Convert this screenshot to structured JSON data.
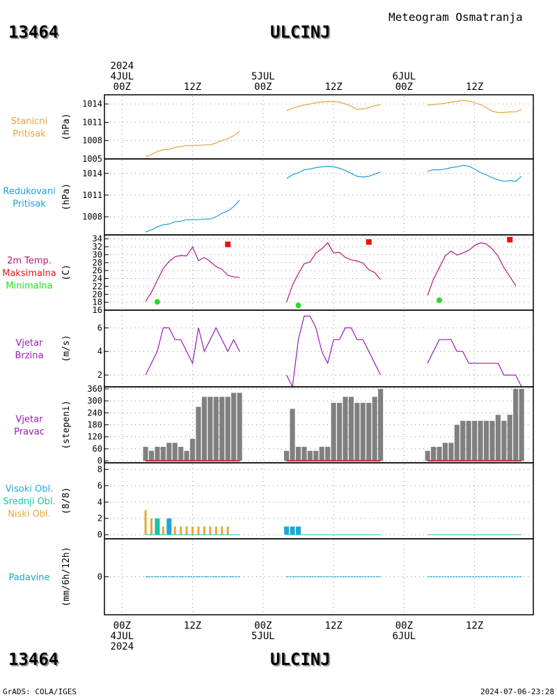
{
  "header": {
    "station_id": "13464",
    "station_name": "ULCINJ",
    "product": "Meteogram Osmatranja"
  },
  "time_axis": {
    "top_labels": [
      {
        "hour": 0,
        "lines": [
          "2024",
          "4JUL",
          "00Z"
        ]
      },
      {
        "hour": 12,
        "lines": [
          "12Z"
        ]
      },
      {
        "hour": 24,
        "lines": [
          "5JUL",
          "00Z"
        ]
      },
      {
        "hour": 36,
        "lines": [
          "12Z"
        ]
      },
      {
        "hour": 48,
        "lines": [
          "6JUL",
          "00Z"
        ]
      },
      {
        "hour": 60,
        "lines": [
          "12Z"
        ]
      }
    ],
    "bottom_labels": [
      {
        "hour": 0,
        "lines": [
          "00Z",
          "4JUL",
          "2024"
        ]
      },
      {
        "hour": 12,
        "lines": [
          "12Z"
        ]
      },
      {
        "hour": 24,
        "lines": [
          "00Z",
          "5JUL"
        ]
      },
      {
        "hour": 36,
        "lines": [
          "12Z"
        ]
      },
      {
        "hour": 48,
        "lines": [
          "00Z",
          "6JUL"
        ]
      },
      {
        "hour": 60,
        "lines": [
          "12Z"
        ]
      }
    ],
    "xlim_hours": [
      -3,
      70
    ],
    "grid_hours": [
      0,
      12,
      24,
      36,
      48,
      60
    ]
  },
  "footer": {
    "left": "GrADS: COLA/IGES",
    "right": "2024-07-06-23:28"
  },
  "colors": {
    "station_pressure": "#e6a23c",
    "reduced_pressure": "#1a9fd9",
    "temperature": "#b0187a",
    "tmax": "#ee1111",
    "tmin": "#22dd22",
    "wind_speed": "#9a18b8",
    "wind_dir_label": "#9a18b8",
    "wind_dir_bar": "#808080",
    "wind_dir_base": "#c03030",
    "cloud_high": "#1ea7d6",
    "cloud_mid": "#19c3a8",
    "cloud_low": "#e6a830",
    "precip": "#1aa4c8"
  },
  "chart_data": [
    {
      "type": "line",
      "panel": "station_pressure",
      "label_lines": [
        "Stanicni",
        "Pritisak"
      ],
      "ylabel": "(hPa)",
      "ylim": [
        1005,
        1015.5
      ],
      "yticks": [
        1005,
        1008,
        1011,
        1014
      ],
      "series": [
        {
          "x": [
            4,
            5,
            6,
            7,
            8,
            9,
            10,
            11,
            12,
            13,
            14,
            15,
            16,
            17,
            18,
            19,
            20
          ],
          "values": [
            1005.4,
            1005.7,
            1006.2,
            1006.5,
            1006.6,
            1006.9,
            1007.0,
            1007.2,
            1007.2,
            1007.2,
            1007.3,
            1007.3,
            1007.6,
            1008.0,
            1008.3,
            1008.8,
            1009.5
          ]
        },
        {
          "x": [
            28,
            29,
            30,
            31,
            32,
            33,
            34,
            35,
            36,
            37,
            38,
            39,
            40,
            41,
            42,
            43,
            44
          ],
          "values": [
            1012.9,
            1013.3,
            1013.6,
            1013.8,
            1014.0,
            1014.2,
            1014.3,
            1014.4,
            1014.4,
            1014.3,
            1014.0,
            1013.6,
            1013.1,
            1013.2,
            1013.4,
            1013.7,
            1013.9
          ]
        },
        {
          "x": [
            52,
            53,
            54,
            55,
            56,
            57,
            58,
            59,
            60,
            61,
            62,
            63,
            64,
            65,
            66,
            67,
            68
          ],
          "values": [
            1013.8,
            1013.9,
            1014.0,
            1014.1,
            1014.3,
            1014.4,
            1014.6,
            1014.5,
            1014.2,
            1013.9,
            1013.4,
            1012.8,
            1012.6,
            1012.6,
            1012.7,
            1012.7,
            1013.1
          ]
        }
      ]
    },
    {
      "type": "line",
      "panel": "reduced_pressure",
      "label_lines": [
        "Redukovani",
        "Pritisak"
      ],
      "ylabel": "(hPa)",
      "ylim": [
        1005.5,
        1016
      ],
      "yticks": [
        1008,
        1011,
        1014
      ],
      "series": [
        {
          "x": [
            4,
            5,
            6,
            7,
            8,
            9,
            10,
            11,
            12,
            13,
            14,
            15,
            16,
            17,
            18,
            19,
            20
          ],
          "values": [
            1005.9,
            1006.2,
            1006.6,
            1006.9,
            1007.0,
            1007.3,
            1007.4,
            1007.6,
            1007.6,
            1007.6,
            1007.7,
            1007.7,
            1008.0,
            1008.5,
            1008.8,
            1009.4,
            1010.3
          ]
        },
        {
          "x": [
            28,
            29,
            30,
            31,
            32,
            33,
            34,
            35,
            36,
            37,
            38,
            39,
            40,
            41,
            42,
            43,
            44
          ],
          "values": [
            1013.3,
            1013.8,
            1014.1,
            1014.5,
            1014.6,
            1014.8,
            1014.9,
            1015.0,
            1014.9,
            1014.7,
            1014.4,
            1014.0,
            1013.6,
            1013.5,
            1013.6,
            1013.9,
            1014.2
          ]
        },
        {
          "x": [
            52,
            53,
            54,
            55,
            56,
            57,
            58,
            59,
            60,
            61,
            62,
            63,
            64,
            65,
            66,
            67,
            68
          ],
          "values": [
            1014.3,
            1014.5,
            1014.5,
            1014.6,
            1014.8,
            1014.9,
            1015.1,
            1015.0,
            1014.6,
            1014.1,
            1013.8,
            1013.4,
            1013.1,
            1012.9,
            1013.0,
            1012.9,
            1013.6
          ]
        }
      ]
    },
    {
      "type": "line",
      "panel": "temperature",
      "label_lines": [
        "2m Temp.",
        "Maksimalna",
        "Minimalna"
      ],
      "ylabel": "(C)",
      "ylim": [
        16,
        35
      ],
      "yticks": [
        16,
        18,
        20,
        22,
        24,
        26,
        28,
        30,
        32,
        34
      ],
      "series": [
        {
          "x": [
            4,
            5,
            6,
            7,
            8,
            9,
            10,
            11,
            12,
            13,
            14,
            15,
            16,
            17,
            18,
            19,
            20
          ],
          "values": [
            18.2,
            20.5,
            23.5,
            26.5,
            28.3,
            29.5,
            29.8,
            29.7,
            32.0,
            28.5,
            29.3,
            28.3,
            27.0,
            26.3,
            24.8,
            24.4,
            24.3
          ]
        },
        {
          "x": [
            28,
            29,
            30,
            31,
            32,
            33,
            34,
            35,
            36,
            37,
            38,
            39,
            40,
            41,
            42,
            43,
            44
          ],
          "values": [
            18.0,
            22.3,
            25.2,
            27.7,
            28.2,
            30.4,
            31.5,
            33.0,
            30.4,
            30.6,
            29.3,
            28.7,
            28.4,
            27.9,
            26.2,
            25.5,
            23.7
          ]
        },
        {
          "x": [
            52,
            53,
            54,
            55,
            56,
            57,
            58,
            59,
            60,
            61,
            62,
            63,
            64,
            65,
            66,
            67,
            68
          ],
          "values": [
            19.7,
            23.8,
            26.7,
            29.7,
            30.9,
            29.9,
            30.4,
            31.1,
            32.3,
            33.0,
            32.7,
            31.5,
            29.6,
            26.7,
            24.5,
            22.2,
            0
          ]
        }
      ],
      "maxima": [
        {
          "x": 18,
          "value": 32.6
        },
        {
          "x": 42,
          "value": 33.2
        },
        {
          "x": 66,
          "value": 33.8
        }
      ],
      "minima": [
        {
          "x": 6,
          "value": 18.1
        },
        {
          "x": 30,
          "value": 17.2
        },
        {
          "x": 54,
          "value": 18.5
        }
      ]
    },
    {
      "type": "line",
      "panel": "wind_speed",
      "label_lines": [
        "Vjetar",
        "Brzina"
      ],
      "ylabel": "(m/s)",
      "ylim": [
        1,
        7.5
      ],
      "yticks": [
        2,
        4,
        6
      ],
      "series": [
        {
          "x": [
            4,
            5,
            6,
            7,
            8,
            9,
            10,
            11,
            12,
            13,
            14,
            15,
            16,
            17,
            18,
            19,
            20
          ],
          "values": [
            2,
            3,
            4,
            6,
            6,
            5,
            5,
            4,
            3,
            6,
            4,
            5,
            6,
            5,
            4,
            5,
            4
          ]
        },
        {
          "x": [
            28,
            29,
            30,
            31,
            32,
            33,
            34,
            35,
            36,
            37,
            38,
            39,
            40,
            41,
            42,
            43,
            44
          ],
          "values": [
            2,
            1,
            5,
            7,
            7,
            6,
            4,
            3,
            5,
            5,
            6,
            6,
            5,
            5,
            4,
            3,
            2
          ]
        },
        {
          "x": [
            52,
            53,
            54,
            55,
            56,
            57,
            58,
            59,
            60,
            61,
            62,
            63,
            64,
            65,
            66,
            67,
            68
          ],
          "values": [
            3,
            4,
            5,
            5,
            5,
            4,
            4,
            3,
            3,
            3,
            3,
            3,
            3,
            2,
            2,
            2,
            1
          ]
        }
      ]
    },
    {
      "type": "bar",
      "panel": "wind_direction",
      "label_lines": [
        "Vjetar",
        "Pravac"
      ],
      "ylabel": "(stepeni)",
      "ylim": [
        -10,
        370
      ],
      "yticks": [
        0,
        60,
        120,
        180,
        240,
        300,
        360
      ],
      "series": [
        {
          "x": [
            4,
            5,
            6,
            7,
            8,
            9,
            10,
            11,
            12,
            13,
            14,
            15,
            16,
            17,
            18,
            19,
            20
          ],
          "values": [
            70,
            50,
            70,
            70,
            90,
            90,
            70,
            50,
            110,
            270,
            320,
            320,
            320,
            320,
            320,
            340,
            340
          ]
        },
        {
          "x": [
            28,
            29,
            30,
            31,
            32,
            33,
            34,
            35,
            36,
            37,
            38,
            39,
            40,
            41,
            42,
            43,
            44
          ],
          "values": [
            50,
            260,
            70,
            70,
            50,
            50,
            70,
            70,
            290,
            290,
            320,
            320,
            290,
            290,
            290,
            320,
            360
          ]
        },
        {
          "x": [
            52,
            53,
            54,
            55,
            56,
            57,
            58,
            59,
            60,
            61,
            62,
            63,
            64,
            65,
            66,
            67,
            68
          ],
          "values": [
            50,
            70,
            70,
            90,
            90,
            180,
            200,
            200,
            200,
            200,
            200,
            200,
            230,
            200,
            230,
            360,
            360
          ]
        }
      ]
    },
    {
      "type": "bar",
      "panel": "clouds",
      "label_lines": [
        "Visoki Obl.",
        "Srednji Obl.",
        "Niski Obl."
      ],
      "ylabel": "(8/8)",
      "ylim": [
        -0.5,
        8.8
      ],
      "yticks": [
        0,
        2,
        4,
        6,
        8
      ],
      "series": [
        {
          "name": "Visoki Obl.",
          "x": [
            8,
            28,
            29,
            30
          ],
          "values": [
            2,
            1,
            1,
            1
          ]
        },
        {
          "name": "Srednji Obl.",
          "x": [
            6
          ],
          "values": [
            2
          ]
        },
        {
          "name": "Niski Obl.",
          "x": [
            4,
            5,
            6,
            7,
            8,
            9,
            10,
            11,
            12,
            13,
            14,
            15,
            16,
            17,
            18
          ],
          "values": [
            3,
            2,
            1,
            1,
            1,
            1,
            1,
            1,
            1,
            1,
            1,
            1,
            1,
            1,
            1
          ]
        }
      ]
    },
    {
      "type": "bar",
      "panel": "precipitation",
      "label_lines": [
        "Padavine"
      ],
      "ylabel": "(mm/6h/12h)",
      "ylim": [
        -1,
        1
      ],
      "yticks": [
        0
      ],
      "series": [
        {
          "x": [
            4,
            5,
            6,
            7,
            8,
            9,
            10,
            11,
            12,
            13,
            14,
            15,
            16,
            17,
            18,
            19,
            20,
            28,
            29,
            30,
            31,
            32,
            33,
            34,
            35,
            36,
            37,
            38,
            39,
            40,
            41,
            42,
            43,
            44,
            52,
            53,
            54,
            55,
            56,
            57,
            58,
            59,
            60,
            61,
            62,
            63,
            64,
            65,
            66,
            67,
            68
          ],
          "values": [
            0,
            0,
            0,
            0,
            0,
            0,
            0,
            0,
            0,
            0,
            0,
            0,
            0,
            0,
            0,
            0,
            0,
            0,
            0,
            0,
            0,
            0,
            0,
            0,
            0,
            0,
            0,
            0,
            0,
            0,
            0,
            0,
            0,
            0,
            0,
            0,
            0,
            0,
            0,
            0,
            0,
            0,
            0,
            0,
            0,
            0,
            0,
            0,
            0,
            0,
            0
          ]
        }
      ]
    }
  ]
}
